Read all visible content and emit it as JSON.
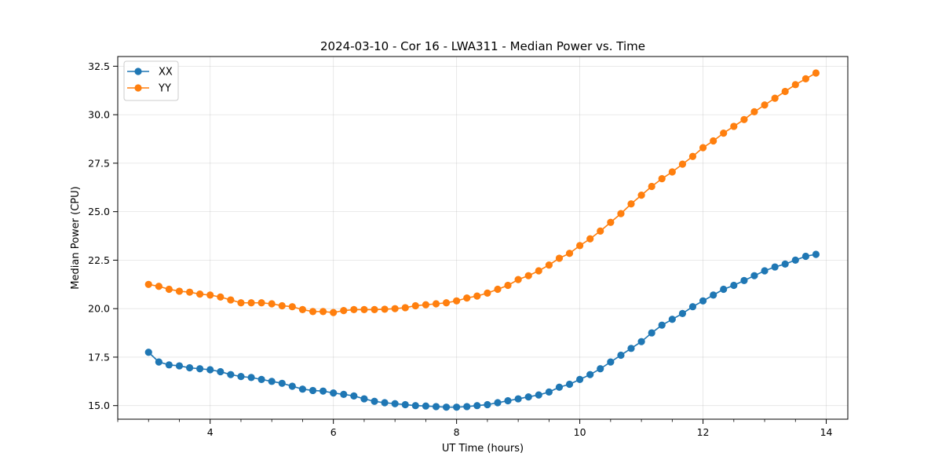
{
  "chart_data": {
    "type": "line",
    "title": "2024-03-10 - Cor 16 - LWA311 - Median Power vs. Time",
    "xlabel": "UT Time (hours)",
    "ylabel": "Median Power (CPU)",
    "xlim": [
      2.5,
      14.35
    ],
    "ylim": [
      14.3,
      33.0
    ],
    "x_ticks": [
      4,
      6,
      8,
      10,
      12,
      14
    ],
    "x_minor_step": 0.5,
    "y_ticks": [
      15.0,
      17.5,
      20.0,
      22.5,
      25.0,
      27.5,
      30.0,
      32.5
    ],
    "grid": true,
    "legend_position": "upper-left",
    "x": [
      3.0,
      3.167,
      3.333,
      3.5,
      3.667,
      3.833,
      4.0,
      4.167,
      4.333,
      4.5,
      4.667,
      4.833,
      5.0,
      5.167,
      5.333,
      5.5,
      5.667,
      5.833,
      6.0,
      6.167,
      6.333,
      6.5,
      6.667,
      6.833,
      7.0,
      7.167,
      7.333,
      7.5,
      7.667,
      7.833,
      8.0,
      8.167,
      8.333,
      8.5,
      8.667,
      8.833,
      9.0,
      9.167,
      9.333,
      9.5,
      9.667,
      9.833,
      10.0,
      10.167,
      10.333,
      10.5,
      10.667,
      10.833,
      11.0,
      11.167,
      11.333,
      11.5,
      11.667,
      11.833,
      12.0,
      12.167,
      12.333,
      12.5,
      12.667,
      12.833,
      13.0,
      13.167,
      13.333,
      13.5,
      13.667,
      13.833
    ],
    "series": [
      {
        "name": "XX",
        "color": "#1f77b4",
        "values": [
          17.75,
          17.25,
          17.1,
          17.05,
          16.95,
          16.9,
          16.85,
          16.75,
          16.6,
          16.5,
          16.45,
          16.35,
          16.25,
          16.15,
          16.0,
          15.85,
          15.78,
          15.75,
          15.65,
          15.58,
          15.5,
          15.35,
          15.22,
          15.15,
          15.1,
          15.05,
          15.0,
          14.98,
          14.95,
          14.92,
          14.92,
          14.95,
          15.0,
          15.05,
          15.15,
          15.25,
          15.35,
          15.45,
          15.55,
          15.7,
          15.95,
          16.1,
          16.35,
          16.6,
          16.9,
          17.25,
          17.6,
          17.95,
          18.3,
          18.75,
          19.15,
          19.45,
          19.75,
          20.1,
          20.4,
          20.7,
          21.0,
          21.2,
          21.45,
          21.7,
          21.95,
          22.15,
          22.3,
          22.5,
          22.7,
          22.8
        ]
      },
      {
        "name": "YY",
        "color": "#ff7f0e",
        "values": [
          21.25,
          21.15,
          21.0,
          20.9,
          20.85,
          20.75,
          20.7,
          20.6,
          20.45,
          20.3,
          20.3,
          20.3,
          20.25,
          20.15,
          20.1,
          19.95,
          19.85,
          19.85,
          19.8,
          19.9,
          19.95,
          19.95,
          19.95,
          19.97,
          20.0,
          20.05,
          20.15,
          20.2,
          20.25,
          20.3,
          20.4,
          20.55,
          20.65,
          20.8,
          21.0,
          21.2,
          21.5,
          21.7,
          21.95,
          22.25,
          22.6,
          22.85,
          23.25,
          23.6,
          24.0,
          24.45,
          24.9,
          25.4,
          25.85,
          26.3,
          26.7,
          27.05,
          27.45,
          27.85,
          28.3,
          28.65,
          29.05,
          29.4,
          29.75,
          30.15,
          30.5,
          30.85,
          31.2,
          31.55,
          31.85,
          32.15
        ]
      }
    ]
  }
}
